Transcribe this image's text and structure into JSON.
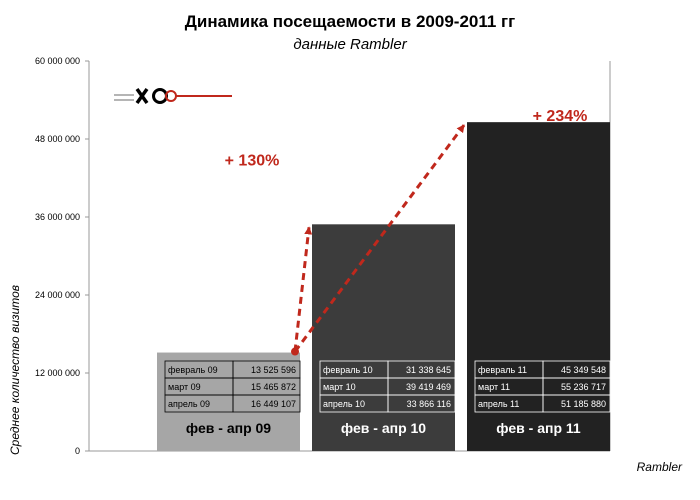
{
  "chart_data": {
    "type": "bar",
    "title": "Динамика посещаемости в  2009-2011 гг",
    "subtitle": "данные Rambler",
    "ylabel": "Среднее количество визитов",
    "source": "Rambler",
    "ylim": [
      0,
      60000000
    ],
    "yticks": [
      {
        "value": 0,
        "label": "0"
      },
      {
        "value": 12000000,
        "label": "12 000 000"
      },
      {
        "value": 24000000,
        "label": "24 000 000"
      },
      {
        "value": 36000000,
        "label": "36 000 000"
      },
      {
        "value": 48000000,
        "label": "48 000 000"
      },
      {
        "value": 60000000,
        "label": "60 000 000"
      }
    ],
    "categories": [
      "фев - апр 09",
      "фев - апр 10",
      "фев - апр 11"
    ],
    "values": [
      15146858,
      34874743,
      50590715
    ],
    "bar_colors": [
      "#a6a6a6",
      "#3c3c3c",
      "#222222"
    ],
    "label_colors": [
      "#000000",
      "#ffffff",
      "#ffffff"
    ],
    "monthly_tables": [
      [
        {
          "month": "февраль 09",
          "value": "13 525 596"
        },
        {
          "month": "март 09",
          "value": "15 465 872"
        },
        {
          "month": "апрель 09",
          "value": "16 449 107"
        }
      ],
      [
        {
          "month": "февраль 10",
          "value": "31 338 645"
        },
        {
          "month": "март 10",
          "value": "39 419 469"
        },
        {
          "month": "апрель 10",
          "value": "33 866 116"
        }
      ],
      [
        {
          "month": "февраль 11",
          "value": "45 349 548"
        },
        {
          "month": "март 11",
          "value": "55 236 717"
        },
        {
          "month": "апрель 11",
          "value": "51 185 880"
        }
      ]
    ],
    "growth_annotations": [
      {
        "label": "+ 130%",
        "from": 0,
        "to": 1
      },
      {
        "label": "+ 234%",
        "from": 0,
        "to": 2
      }
    ],
    "accent_color": "#c0281c",
    "grid": false
  }
}
